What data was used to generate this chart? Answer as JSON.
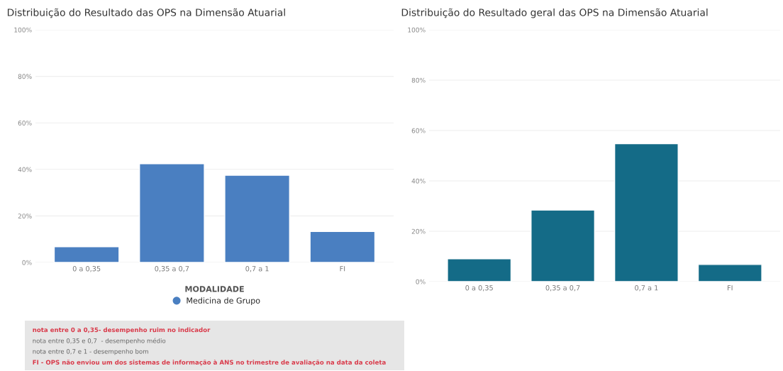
{
  "chart_data": [
    {
      "type": "bar",
      "title": "Distribuição do Resultado das OPS na Dimensão Atuarial",
      "categories": [
        "0 a 0,35",
        "0,35 a 0,7",
        "0,7 a 1",
        "FI"
      ],
      "legend_title": "MODALIDADE",
      "series": [
        {
          "name": "Medicina de Grupo",
          "color": "#4a7fc1",
          "values": [
            6.8,
            42.4,
            37.5,
            13.3
          ]
        }
      ],
      "ylim": [
        0,
        100
      ],
      "yticks": [
        {
          "value": 0,
          "label": "0%"
        },
        {
          "value": 20,
          "label": "20%"
        },
        {
          "value": 40,
          "label": "40%"
        },
        {
          "value": 60,
          "label": "60%"
        },
        {
          "value": 80,
          "label": "80%"
        },
        {
          "value": 100,
          "label": "100%"
        }
      ],
      "grid": "y",
      "legend": "bottom"
    },
    {
      "type": "bar",
      "title": "Distribuição do Resultado geral das OPS na Dimensão Atuarial",
      "categories": [
        "0 a 0,35",
        "0,35 a 0,7",
        "0,7 a 1",
        "FI"
      ],
      "series": [
        {
          "color": "#146b87",
          "values": [
            9.1,
            28.4,
            54.8,
            6.8
          ]
        }
      ],
      "ylim": [
        0,
        100
      ],
      "yticks": [
        {
          "value": 0,
          "label": "0%"
        },
        {
          "value": 20,
          "label": "20%"
        },
        {
          "value": 40,
          "label": "40%"
        },
        {
          "value": 60,
          "label": "60%"
        },
        {
          "value": 80,
          "label": "80%"
        },
        {
          "value": 100,
          "label": "100%"
        }
      ],
      "grid": "y"
    },
    {
      "type": "other",
      "annotations": [
        "nota entre 0 a 0,35- desempenho ruim no indicador",
        "nota entre 0,35 e 0,7  - desempenho médio",
        "nota entre 0,7 e 1 - desempenho bom",
        "FI - OPS não enviou um dos sistemas de informação à ANS no trimestre de avaliação na data da coleta"
      ],
      "colors": [
        "#d93a4a",
        "#666666",
        "#666666",
        "#d93a4a"
      ]
    }
  ]
}
